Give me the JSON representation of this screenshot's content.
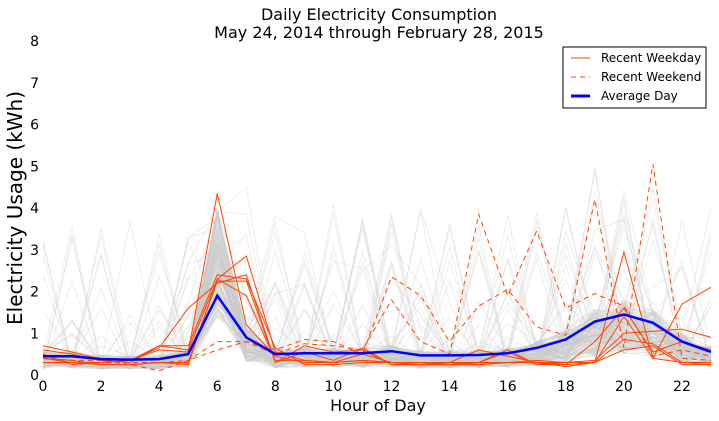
{
  "chart_data": {
    "type": "line",
    "title": "Daily Electricity Consumption",
    "subtitle": "May 24, 2014 through February 28, 2015",
    "xlabel": "Hour of Day",
    "ylabel": "Electricity Usage (kWh)",
    "xlim": [
      0,
      23
    ],
    "ylim": [
      0,
      8
    ],
    "x_ticks": [
      0,
      2,
      4,
      6,
      8,
      10,
      12,
      14,
      16,
      18,
      20,
      22
    ],
    "y_ticks": [
      0,
      1,
      2,
      3,
      4,
      5,
      6,
      7,
      8
    ],
    "grid": false,
    "legend_position": "top-right",
    "x": [
      0,
      1,
      2,
      3,
      4,
      5,
      6,
      7,
      8,
      9,
      10,
      11,
      12,
      13,
      14,
      15,
      16,
      17,
      18,
      19,
      20,
      21,
      22,
      23
    ],
    "series": [
      {
        "name": "Average Day",
        "role": "average",
        "color": "#0000ff",
        "values": [
          0.45,
          0.45,
          0.38,
          0.37,
          0.38,
          0.5,
          1.9,
          0.9,
          0.5,
          0.52,
          0.52,
          0.52,
          0.57,
          0.47,
          0.47,
          0.48,
          0.52,
          0.65,
          0.85,
          1.28,
          1.45,
          1.25,
          0.8,
          0.55
        ]
      },
      {
        "name": "Recent Weekday",
        "role": "weekday",
        "color": "#ff4500",
        "lines": [
          [
            0.7,
            0.55,
            0.38,
            0.35,
            0.6,
            0.55,
            4.35,
            1.2,
            0.45,
            0.3,
            0.3,
            0.35,
            0.3,
            0.25,
            0.25,
            0.25,
            0.3,
            0.3,
            0.3,
            0.35,
            1.0,
            1.05,
            1.1,
            0.9
          ],
          [
            0.6,
            0.5,
            0.35,
            0.3,
            0.7,
            0.6,
            2.3,
            2.85,
            0.55,
            0.35,
            0.3,
            0.5,
            0.3,
            0.3,
            0.3,
            0.25,
            0.3,
            0.35,
            0.3,
            0.3,
            2.95,
            0.4,
            1.7,
            2.1
          ],
          [
            0.4,
            0.3,
            0.3,
            0.35,
            0.65,
            1.6,
            2.2,
            2.4,
            0.3,
            0.55,
            0.35,
            0.65,
            0.25,
            0.25,
            0.3,
            0.6,
            0.45,
            0.3,
            0.25,
            0.8,
            1.6,
            0.55,
            0.8,
            0.6
          ],
          [
            0.5,
            0.25,
            0.3,
            0.35,
            0.7,
            0.7,
            2.4,
            2.3,
            0.65,
            0.25,
            0.25,
            0.3,
            0.3,
            0.25,
            0.25,
            0.3,
            0.6,
            0.25,
            0.25,
            0.3,
            0.85,
            0.75,
            0.3,
            0.25
          ],
          [
            0.3,
            0.3,
            0.25,
            0.25,
            0.3,
            0.3,
            2.25,
            2.25,
            0.3,
            0.7,
            0.55,
            0.6,
            0.25,
            0.25,
            0.3,
            0.3,
            0.55,
            0.25,
            0.3,
            0.3,
            0.6,
            0.7,
            0.25,
            0.25
          ],
          [
            0.4,
            0.35,
            0.25,
            0.25,
            0.3,
            0.25,
            2.3,
            1.9,
            0.35,
            0.35,
            0.3,
            0.35,
            0.3,
            0.3,
            0.25,
            0.3,
            0.3,
            0.3,
            0.2,
            0.3,
            1.4,
            0.4,
            0.3,
            0.3
          ]
        ]
      },
      {
        "name": "Recent Weekend",
        "role": "weekend",
        "color": "#ff4500",
        "lines": [
          [
            0.4,
            0.35,
            0.35,
            0.25,
            0.1,
            0.35,
            0.6,
            0.8,
            0.6,
            0.85,
            0.8,
            0.5,
            2.35,
            1.9,
            0.8,
            1.65,
            2.05,
            1.15,
            0.95,
            4.2,
            0.65,
            5.05,
            0.4,
            0.35
          ],
          [
            0.3,
            0.3,
            0.3,
            0.3,
            0.3,
            0.35,
            0.8,
            0.8,
            0.5,
            0.75,
            0.7,
            0.6,
            1.8,
            0.8,
            0.5,
            3.85,
            1.9,
            3.45,
            1.6,
            1.95,
            1.65,
            0.45,
            0.6,
            0.45
          ]
        ]
      }
    ],
    "background_days": {
      "description": "",
      "color": "#cccccc",
      "opacity": 0.35
    }
  }
}
